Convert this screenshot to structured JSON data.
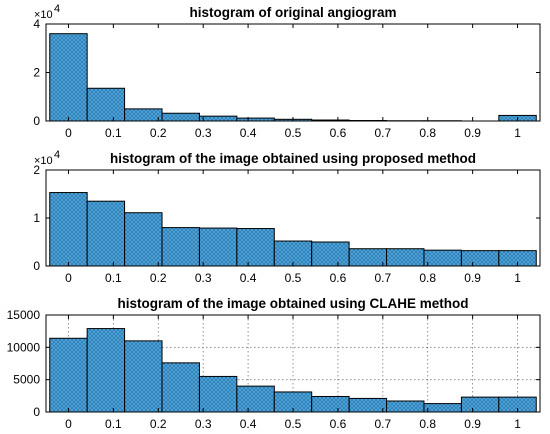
{
  "chart_data": [
    {
      "type": "bar",
      "title": "histogram of original angiogram",
      "multiplier": "×10",
      "multiplier_exp": "4",
      "xlim": [
        -0.05,
        1.05
      ],
      "ylim": [
        0,
        4
      ],
      "x_ticks": [
        "0",
        "0.1",
        "0.2",
        "0.3",
        "0.4",
        "0.5",
        "0.6",
        "0.7",
        "0.8",
        "0.9",
        "1"
      ],
      "y_ticks": [
        "0",
        "2",
        "4"
      ],
      "y_tick_values": [
        0,
        2,
        4
      ],
      "grid": false,
      "bin_centers": [
        0,
        0.0833,
        0.1667,
        0.25,
        0.3333,
        0.4167,
        0.5,
        0.5833,
        0.6667,
        0.75,
        0.8333,
        0.9167,
        1
      ],
      "bin_width": 0.0833,
      "values": [
        3.6,
        1.35,
        0.5,
        0.32,
        0.2,
        0.12,
        0.07,
        0.04,
        0.02,
        0.01,
        0.01,
        0.0,
        0.23
      ],
      "bar_color": "#4da6e0"
    },
    {
      "type": "bar",
      "title": "histogram of the image obtained using proposed method",
      "multiplier": "×10",
      "multiplier_exp": "4",
      "xlim": [
        -0.05,
        1.05
      ],
      "ylim": [
        0,
        2
      ],
      "x_ticks": [
        "0",
        "0.1",
        "0.2",
        "0.3",
        "0.4",
        "0.5",
        "0.6",
        "0.7",
        "0.8",
        "0.9",
        "1"
      ],
      "y_ticks": [
        "0",
        "1",
        "2"
      ],
      "y_tick_values": [
        0,
        1,
        2
      ],
      "grid": false,
      "bin_centers": [
        0,
        0.0833,
        0.1667,
        0.25,
        0.3333,
        0.4167,
        0.5,
        0.5833,
        0.6667,
        0.75,
        0.8333,
        0.9167,
        1
      ],
      "bin_width": 0.0833,
      "values": [
        1.53,
        1.35,
        1.11,
        0.8,
        0.79,
        0.78,
        0.52,
        0.5,
        0.36,
        0.36,
        0.33,
        0.32,
        0.32
      ],
      "bar_color": "#4da6e0"
    },
    {
      "type": "bar",
      "title": "histogram of the image obtained using CLAHE method",
      "multiplier": "",
      "multiplier_exp": "",
      "xlim": [
        -0.05,
        1.05
      ],
      "ylim": [
        0,
        15000
      ],
      "x_ticks": [
        "0",
        "0.1",
        "0.2",
        "0.3",
        "0.4",
        "0.5",
        "0.6",
        "0.7",
        "0.8",
        "0.9",
        "1"
      ],
      "y_ticks": [
        "0",
        "5000",
        "10000",
        "15000"
      ],
      "y_tick_values": [
        0,
        5000,
        10000,
        15000
      ],
      "grid": true,
      "bin_centers": [
        0,
        0.0833,
        0.1667,
        0.25,
        0.3333,
        0.4167,
        0.5,
        0.5833,
        0.6667,
        0.75,
        0.8333,
        0.9167,
        1
      ],
      "bin_width": 0.0833,
      "values": [
        11400,
        12900,
        11000,
        7600,
        5500,
        4000,
        3100,
        2400,
        2100,
        1700,
        1300,
        2300,
        2300
      ],
      "bar_color": "#4da6e0"
    }
  ]
}
